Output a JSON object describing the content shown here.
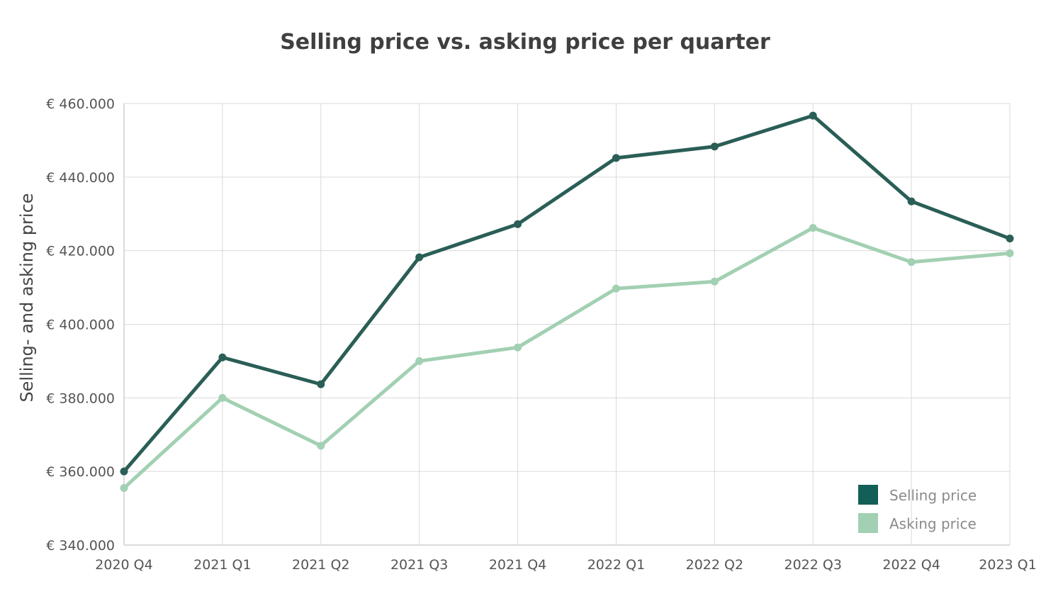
{
  "chart_data": {
    "type": "line",
    "title": "Selling price vs. asking price per quarter",
    "xlabel": "",
    "ylabel": "Selling- and asking price",
    "categories": [
      "2020 Q4",
      "2021 Q1",
      "2021 Q2",
      "2021 Q3",
      "2021 Q4",
      "2022 Q1",
      "2022 Q2",
      "2022 Q3",
      "2022 Q4",
      "2023 Q1"
    ],
    "ylim": [
      340000,
      460000
    ],
    "yticks": [
      340000,
      360000,
      380000,
      400000,
      420000,
      440000,
      460000
    ],
    "ytick_labels": [
      "€ 340.000",
      "€ 360.000",
      "€ 380.000",
      "€ 400.000",
      "€ 420.000",
      "€ 440.000",
      "€ 460.000"
    ],
    "grid": true,
    "legend_position": "bottom-right",
    "series": [
      {
        "name": "Selling price",
        "color": "#2a5e56",
        "legend_color": "#135f57",
        "values": [
          360000,
          391000,
          383700,
          418200,
          427200,
          445200,
          448300,
          456700,
          433400,
          423300
        ]
      },
      {
        "name": "Asking price",
        "color": "#a2d0b2",
        "legend_color": "#a2d0b2",
        "values": [
          355500,
          380000,
          367000,
          390000,
          393700,
          409700,
          411600,
          426200,
          416900,
          419300
        ]
      }
    ]
  }
}
